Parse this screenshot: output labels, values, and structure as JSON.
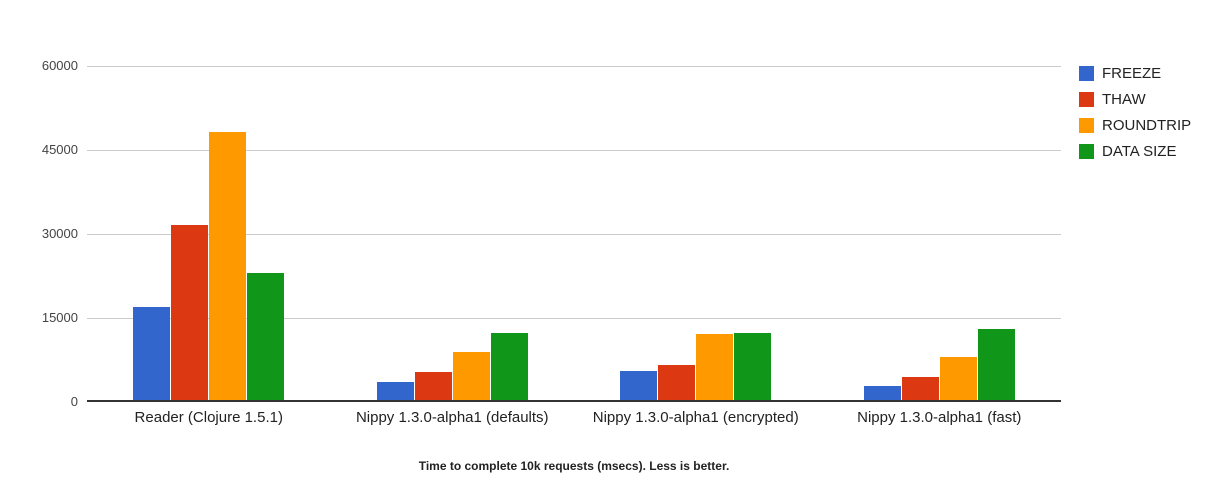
{
  "chart_data": {
    "type": "bar",
    "categories": [
      "Reader (Clojure 1.5.1)",
      "Nippy 1.3.0-alpha1 (defaults)",
      "Nippy 1.3.0-alpha1 (encrypted)",
      "Nippy 1.3.0-alpha1 (fast)"
    ],
    "series": [
      {
        "name": "FREEZE",
        "color": "#3366CC",
        "values": [
          17000,
          3600,
          5600,
          2900
        ]
      },
      {
        "name": "THAW",
        "color": "#DC3912",
        "values": [
          31600,
          5400,
          6600,
          4500
        ]
      },
      {
        "name": "ROUNDTRIP",
        "color": "#FF9900",
        "values": [
          48300,
          9000,
          12200,
          8100
        ]
      },
      {
        "name": "DATA SIZE",
        "color": "#109618",
        "values": [
          23000,
          12300,
          12400,
          13100
        ]
      }
    ],
    "title": "",
    "xlabel": "",
    "ylabel": "",
    "ylim": [
      0,
      60000
    ],
    "yticks": [
      0,
      15000,
      30000,
      45000,
      60000
    ],
    "grid": true,
    "legend_position": "right",
    "caption": "Time to complete 10k requests (msecs). Less is better."
  },
  "colors": {
    "background": "#ffffff",
    "gridline": "#cccccc",
    "axis_line": "#333333",
    "y_tick_label": "#444444",
    "category_label": "#222222",
    "legend_label": "#222222",
    "caption_text": "#222222"
  }
}
